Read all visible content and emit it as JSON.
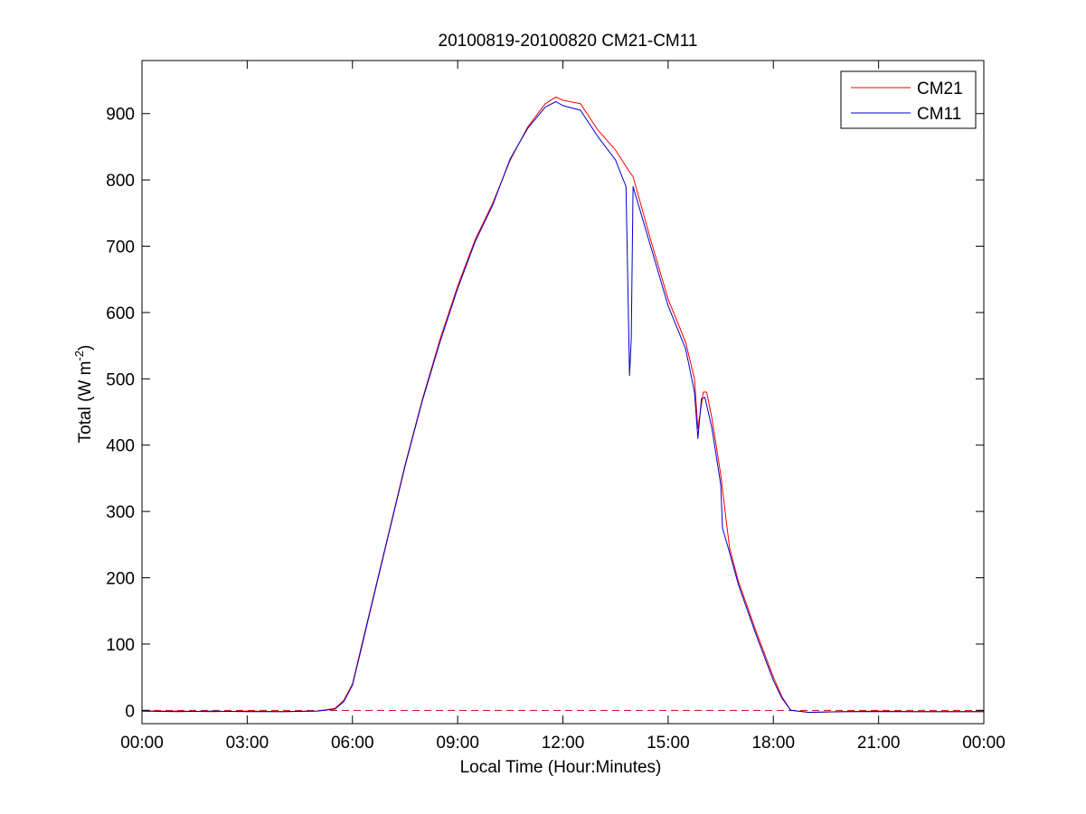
{
  "chart_data": {
    "type": "line",
    "title": "20100819-20100820 CM21-CM11",
    "xlabel": "Local Time (Hour:Minutes)",
    "ylabel_main": "Total (W m",
    "ylabel_sup": "-2",
    "ylabel_close": ")",
    "xlim": [
      0,
      24
    ],
    "ylim": [
      -20,
      980
    ],
    "x_ticks": [
      0,
      3,
      6,
      9,
      12,
      15,
      18,
      21,
      24
    ],
    "x_tick_labels": [
      "00:00",
      "03:00",
      "06:00",
      "09:00",
      "12:00",
      "15:00",
      "18:00",
      "21:00",
      "00:00"
    ],
    "y_ticks": [
      0,
      100,
      200,
      300,
      400,
      500,
      600,
      700,
      800,
      900
    ],
    "y_tick_labels": [
      "0",
      "100",
      "200",
      "300",
      "400",
      "500",
      "600",
      "700",
      "800",
      "900"
    ],
    "grid": false,
    "legend_position": "top-right",
    "zero_reference_line": {
      "y": 0,
      "style": "dashed",
      "color": "#cc0000"
    },
    "series": [
      {
        "name": "CM21",
        "color": "#ff0000",
        "x": [
          0,
          1,
          2,
          3,
          4,
          5,
          5.5,
          5.75,
          6.0,
          6.25,
          6.5,
          7.0,
          7.5,
          8.0,
          8.5,
          9.0,
          9.5,
          10.0,
          10.5,
          11.0,
          11.5,
          11.8,
          12.0,
          12.5,
          13.0,
          13.5,
          13.9,
          14.0,
          14.5,
          15.0,
          15.5,
          15.75,
          15.85,
          16.0,
          16.1,
          16.25,
          16.5,
          16.75,
          17.0,
          17.5,
          18.0,
          18.25,
          18.5,
          19.0,
          20.0,
          21.0,
          22.0,
          23.0,
          24.0
        ],
        "y": [
          -1,
          -1,
          -2,
          -1,
          -2,
          -1,
          3,
          15,
          40,
          95,
          150,
          260,
          370,
          470,
          560,
          640,
          710,
          765,
          830,
          880,
          915,
          925,
          920,
          915,
          875,
          845,
          812,
          805,
          710,
          620,
          555,
          500,
          425,
          480,
          480,
          440,
          355,
          245,
          195,
          120,
          50,
          20,
          0,
          -3,
          -2,
          -1,
          -2,
          -2,
          -2
        ]
      },
      {
        "name": "CM11",
        "color": "#0000cc",
        "x": [
          0,
          1,
          2,
          3,
          4,
          5,
          5.5,
          5.75,
          6.0,
          6.25,
          6.5,
          7.0,
          7.5,
          8.0,
          8.5,
          9.0,
          9.5,
          10.0,
          10.5,
          11.0,
          11.5,
          11.8,
          12.0,
          12.5,
          13.0,
          13.5,
          13.8,
          13.9,
          13.95,
          14.0,
          14.5,
          15.0,
          15.5,
          15.75,
          15.85,
          15.95,
          16.05,
          16.25,
          16.5,
          16.55,
          16.75,
          17.0,
          17.5,
          18.0,
          18.25,
          18.5,
          19.0,
          20.0,
          21.0,
          22.0,
          23.0,
          24.0
        ],
        "y": [
          -1,
          -2,
          -1,
          -2,
          -2,
          -1,
          2,
          13,
          38,
          92,
          148,
          258,
          368,
          468,
          556,
          636,
          707,
          762,
          832,
          878,
          910,
          918,
          912,
          905,
          865,
          830,
          790,
          505,
          560,
          790,
          700,
          610,
          545,
          480,
          410,
          470,
          472,
          425,
          340,
          275,
          238,
          190,
          115,
          45,
          18,
          0,
          -3,
          -2,
          -2,
          -2,
          -2,
          -2
        ]
      }
    ]
  }
}
